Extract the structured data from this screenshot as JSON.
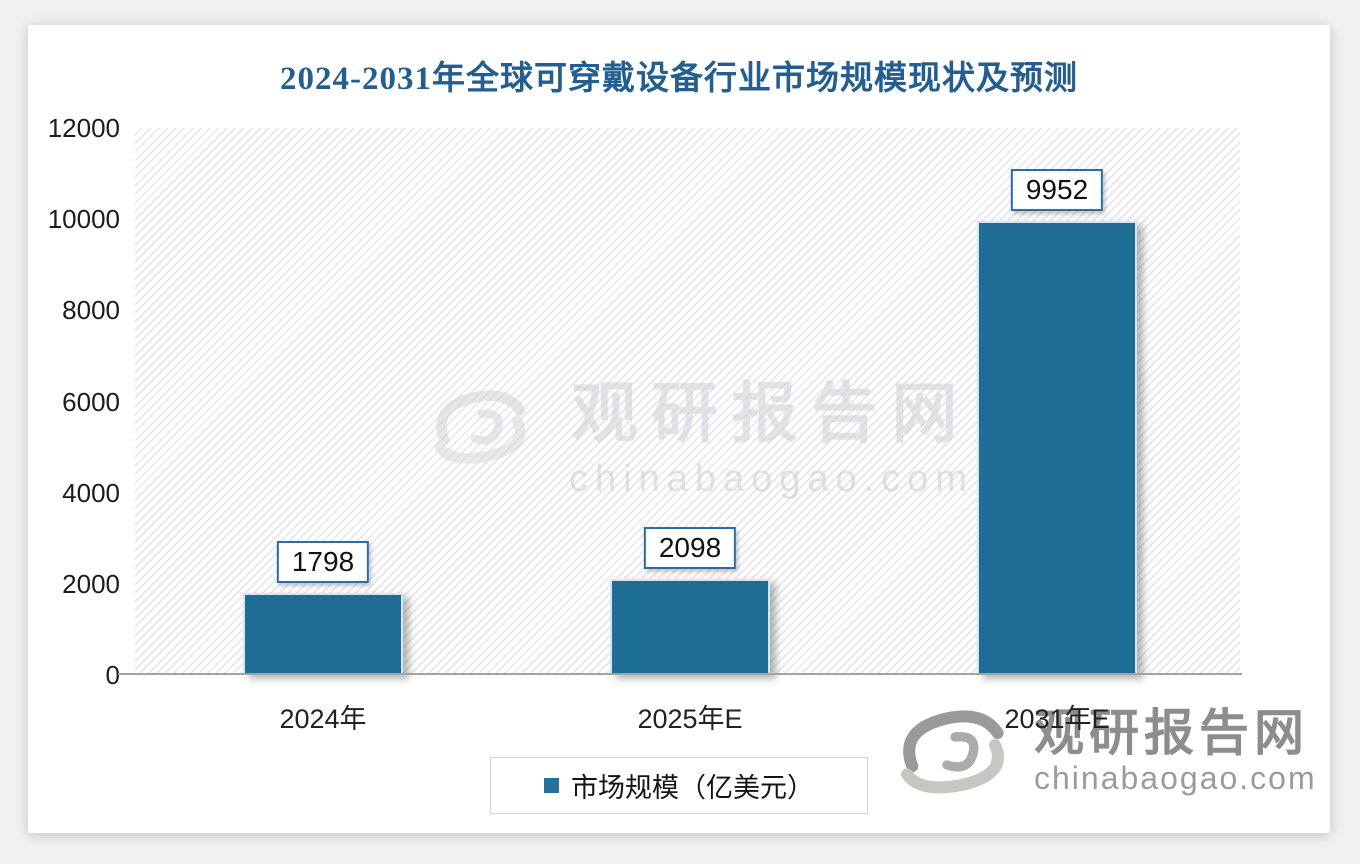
{
  "chart_data": {
    "type": "bar",
    "title": "2024-2031年全球可穿戴设备行业市场规模现状及预测",
    "categories": [
      "2024年",
      "2025年E",
      "2031年E"
    ],
    "values": [
      1798,
      2098,
      9952
    ],
    "series_name": "市场规模（亿美元）",
    "xlabel": "",
    "ylabel": "",
    "ylim": [
      0,
      12000
    ],
    "yticks": [
      "12000",
      "10000",
      "8000",
      "6000",
      "4000",
      "2000",
      "0"
    ],
    "grid": false,
    "legend_position": "bottom",
    "plot_background": "white-diagonal-hatch",
    "bar_color": "#1e6d95",
    "title_color": "#235e8e",
    "label_box_border_color": "#2b6ca3"
  },
  "legend": {
    "label": "市场规模（亿美元）",
    "swatch_color": "#27709b"
  },
  "watermark": {
    "site_name": "观研报告网",
    "site_url": "chinabaogao.com"
  },
  "footer_logo": {
    "site_name": "观研报告网",
    "site_url": "chinabaogao.com"
  }
}
